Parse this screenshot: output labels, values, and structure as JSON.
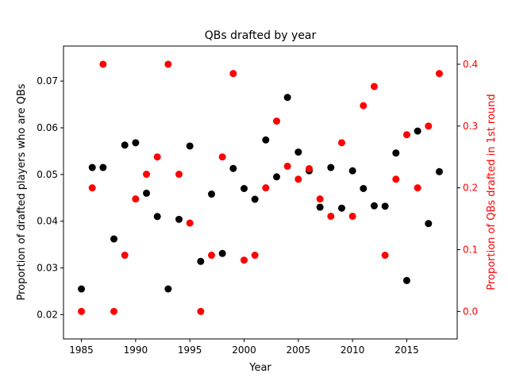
{
  "chart_data": {
    "type": "scatter",
    "title": "QBs drafted by year",
    "xlabel": "Year",
    "ylabel": "Proportion of drafted players who are QBs",
    "y2label": "Proportion of QBs drafted in 1st round",
    "xlim": [
      1983.35,
      2019.65
    ],
    "ylim": [
      0.0148,
      0.0775
    ],
    "y2lim": [
      -0.0445,
      0.4295
    ],
    "x_ticks": [
      1985,
      1990,
      1995,
      2000,
      2005,
      2010,
      2015
    ],
    "y_ticks": [
      0.02,
      0.03,
      0.04,
      0.05,
      0.06,
      0.07
    ],
    "y2_ticks": [
      0.0,
      0.1,
      0.2,
      0.3,
      0.4
    ],
    "grid": false,
    "colors": {
      "left_series": "#000000",
      "right_series": "#ff0000",
      "right_axis": "#ff0000",
      "axes": "#000000"
    },
    "series": [
      {
        "axis": "left",
        "x": [
          1985,
          1986,
          1987,
          1988,
          1989,
          1990,
          1991,
          1992,
          1993,
          1994,
          1995,
          1996,
          1997,
          1998,
          1999,
          2000,
          2001,
          2002,
          2003,
          2004,
          2005,
          2006,
          2007,
          2008,
          2009,
          2010,
          2011,
          2012,
          2013,
          2014,
          2015,
          2016,
          2017,
          2018
        ],
        "values": [
          0.0255,
          0.0515,
          0.0515,
          0.0362,
          0.0563,
          0.0568,
          0.046,
          0.041,
          0.0255,
          0.0404,
          0.0561,
          0.0314,
          0.0458,
          0.0331,
          0.0513,
          0.047,
          0.0447,
          0.0574,
          0.0495,
          0.0665,
          0.0548,
          0.0508,
          0.043,
          0.0515,
          0.0428,
          0.0508,
          0.047,
          0.0433,
          0.0432,
          0.0546,
          0.0273,
          0.0593,
          0.0395,
          0.0506
        ]
      },
      {
        "axis": "right",
        "x": [
          1985,
          1986,
          1987,
          1988,
          1989,
          1990,
          1991,
          1992,
          1993,
          1994,
          1995,
          1996,
          1997,
          1998,
          1999,
          2000,
          2001,
          2002,
          2003,
          2004,
          2005,
          2006,
          2007,
          2008,
          2009,
          2010,
          2011,
          2012,
          2013,
          2014,
          2015,
          2016,
          2017,
          2018
        ],
        "values": [
          0.0,
          0.2,
          0.4,
          0.0,
          0.091,
          0.182,
          0.222,
          0.25,
          0.4,
          0.222,
          0.143,
          0.0,
          0.091,
          0.25,
          0.385,
          0.083,
          0.091,
          0.2,
          0.308,
          0.235,
          0.214,
          0.231,
          0.182,
          0.154,
          0.273,
          0.154,
          0.333,
          0.364,
          0.091,
          0.214,
          0.286,
          0.2,
          0.3,
          0.385
        ]
      }
    ]
  }
}
